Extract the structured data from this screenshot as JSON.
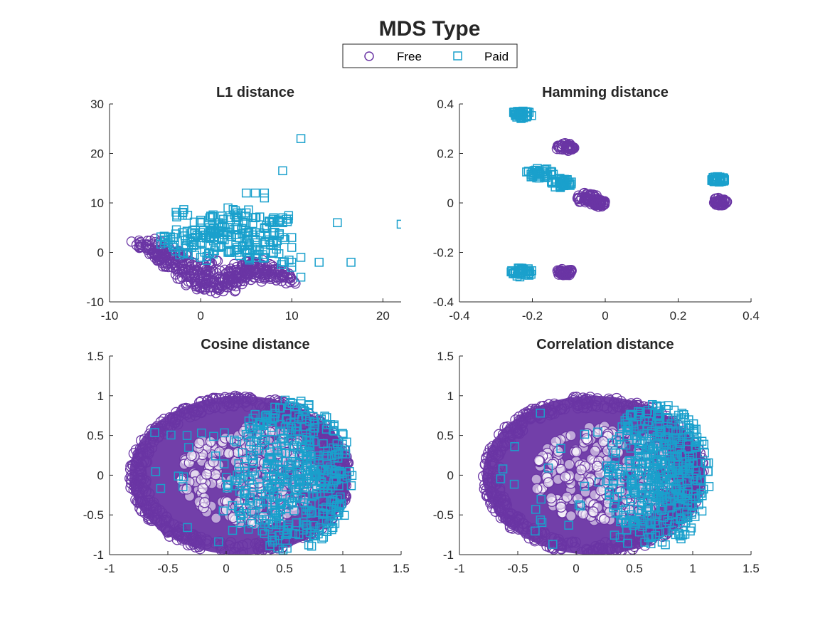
{
  "figure": {
    "title": "MDS Type",
    "legend": [
      {
        "label": "Free",
        "marker": "circle",
        "color": "#6a35a4"
      },
      {
        "label": "Paid",
        "marker": "square",
        "color": "#1aa0cc"
      }
    ],
    "legend_placement": "top-center"
  },
  "chart_data": [
    {
      "type": "scatter",
      "title": "L1 distance",
      "xlim": [
        -10,
        22
      ],
      "ylim": [
        -10,
        30
      ],
      "xticks": [
        -10,
        0,
        10,
        20
      ],
      "yticks": [
        -10,
        0,
        10,
        20,
        30
      ],
      "grid": false,
      "series": [
        {
          "name": "Free",
          "marker": "circle",
          "color": "#6a35a4",
          "points": [
            [
              -7,
              1.5
            ],
            [
              -6,
              1
            ],
            [
              -5,
              0
            ],
            [
              -5,
              -1
            ],
            [
              -4,
              -2
            ],
            [
              -4,
              1
            ],
            [
              -3,
              -3
            ],
            [
              -3,
              0
            ],
            [
              -2,
              -4
            ],
            [
              -2,
              -1
            ],
            [
              -1,
              -5
            ],
            [
              -1,
              -2
            ],
            [
              0,
              -6
            ],
            [
              0,
              -3
            ],
            [
              1,
              -7
            ],
            [
              1,
              -4
            ],
            [
              2,
              -7
            ],
            [
              2,
              -5
            ],
            [
              3,
              -6
            ],
            [
              3,
              -4
            ],
            [
              4,
              -6
            ],
            [
              4,
              -3
            ],
            [
              5,
              -5
            ],
            [
              5,
              -2
            ],
            [
              6,
              -5
            ],
            [
              6,
              -4
            ],
            [
              7,
              -5
            ],
            [
              8,
              -5
            ],
            [
              9,
              -5
            ],
            [
              10,
              -5.5
            ],
            [
              -6,
              1.5
            ],
            [
              -5,
              2
            ],
            [
              -4,
              0.5
            ],
            [
              -3,
              -1.5
            ],
            [
              -2,
              -2.5
            ],
            [
              -1,
              -3.5
            ],
            [
              0,
              -4.5
            ],
            [
              1,
              -5.5
            ],
            [
              2,
              -6
            ],
            [
              3,
              -5
            ],
            [
              4,
              -4
            ],
            [
              5,
              -3.5
            ],
            [
              6,
              -3
            ],
            [
              7,
              -3.5
            ],
            [
              8,
              -4
            ],
            [
              9,
              -4.5
            ],
            [
              -1,
              -6
            ],
            [
              0,
              -7
            ],
            [
              2,
              -7.5
            ],
            [
              3,
              -7
            ],
            [
              -2,
              -5
            ],
            [
              1,
              -2
            ],
            [
              -3,
              -2
            ],
            [
              4,
              -5
            ],
            [
              6,
              -2
            ],
            [
              -4,
              -1
            ],
            [
              -5,
              -0.5
            ],
            [
              5,
              -4
            ],
            [
              7,
              -4.5
            ],
            [
              8,
              -3
            ]
          ]
        },
        {
          "name": "Paid",
          "marker": "square",
          "color": "#1aa0cc",
          "points": [
            [
              -4,
              3
            ],
            [
              -3,
              3
            ],
            [
              -2,
              8
            ],
            [
              -2,
              7.5
            ],
            [
              -2,
              4
            ],
            [
              -1,
              4
            ],
            [
              0,
              6
            ],
            [
              0,
              4
            ],
            [
              1,
              7
            ],
            [
              1,
              5
            ],
            [
              2,
              6
            ],
            [
              2,
              4
            ],
            [
              3,
              7
            ],
            [
              3,
              5
            ],
            [
              4,
              7
            ],
            [
              4,
              5
            ],
            [
              5,
              8
            ],
            [
              5,
              6
            ],
            [
              5,
              12
            ],
            [
              6,
              12
            ],
            [
              7,
              12
            ],
            [
              7,
              11
            ],
            [
              8,
              6
            ],
            [
              8,
              7
            ],
            [
              9,
              7
            ],
            [
              9,
              6
            ],
            [
              9,
              16.5
            ],
            [
              11,
              23
            ],
            [
              10,
              3
            ],
            [
              10,
              1
            ],
            [
              11,
              -1
            ],
            [
              11,
              -5
            ],
            [
              13,
              -2
            ],
            [
              15,
              6
            ],
            [
              16.5,
              -2
            ],
            [
              22,
              5.7
            ],
            [
              -3,
              1
            ],
            [
              -2,
              0
            ],
            [
              -1,
              1
            ],
            [
              0,
              2
            ],
            [
              1,
              0
            ],
            [
              2,
              1
            ],
            [
              3,
              2
            ],
            [
              4,
              1
            ],
            [
              5,
              0
            ],
            [
              6,
              1
            ],
            [
              7,
              2
            ],
            [
              8,
              0
            ],
            [
              9,
              -2
            ],
            [
              10,
              -3
            ],
            [
              -1,
              2
            ],
            [
              0,
              -1
            ],
            [
              1,
              3
            ],
            [
              2,
              3
            ],
            [
              3,
              0
            ],
            [
              4,
              3
            ],
            [
              5,
              4
            ],
            [
              6,
              4
            ],
            [
              6,
              3
            ],
            [
              7,
              5
            ],
            [
              8,
              4
            ],
            [
              3,
              9
            ],
            [
              4,
              8
            ],
            [
              6,
              7
            ],
            [
              -4,
              2
            ],
            [
              2,
              5
            ],
            [
              1,
              4
            ],
            [
              0,
              3
            ],
            [
              8,
              2
            ],
            [
              9,
              3
            ],
            [
              10,
              -2
            ],
            [
              7,
              -1
            ],
            [
              6,
              -1
            ],
            [
              5,
              2
            ],
            [
              4,
              0
            ],
            [
              3,
              4
            ]
          ]
        }
      ]
    },
    {
      "type": "scatter",
      "title": "Hamming distance",
      "xlim": [
        -0.4,
        0.4
      ],
      "ylim": [
        -0.4,
        0.4
      ],
      "xticks": [
        -0.4,
        -0.2,
        0,
        0.2,
        0.4
      ],
      "yticks": [
        -0.4,
        -0.2,
        0,
        0.2,
        0.4
      ],
      "grid": false,
      "series": [
        {
          "name": "Free",
          "marker": "circle",
          "color": "#6a35a4",
          "clusters": [
            {
              "cx": -0.11,
              "cy": 0.225,
              "rx": 0.025,
              "ry": 0.015
            },
            {
              "cx": -0.05,
              "cy": 0.02,
              "rx": 0.03,
              "ry": 0.02
            },
            {
              "cx": -0.02,
              "cy": 0.0,
              "rx": 0.02,
              "ry": 0.015
            },
            {
              "cx": -0.11,
              "cy": -0.28,
              "rx": 0.025,
              "ry": 0.012
            },
            {
              "cx": 0.315,
              "cy": 0.005,
              "rx": 0.02,
              "ry": 0.015
            }
          ]
        },
        {
          "name": "Paid",
          "marker": "square",
          "color": "#1aa0cc",
          "clusters": [
            {
              "cx": -0.23,
              "cy": 0.355,
              "rx": 0.03,
              "ry": 0.018
            },
            {
              "cx": -0.18,
              "cy": 0.12,
              "rx": 0.04,
              "ry": 0.02
            },
            {
              "cx": -0.12,
              "cy": 0.08,
              "rx": 0.03,
              "ry": 0.02
            },
            {
              "cx": -0.23,
              "cy": -0.28,
              "rx": 0.03,
              "ry": 0.02
            },
            {
              "cx": 0.31,
              "cy": 0.095,
              "rx": 0.02,
              "ry": 0.012
            }
          ]
        }
      ]
    },
    {
      "type": "scatter",
      "title": "Cosine distance",
      "xlim": [
        -1,
        1.5
      ],
      "ylim": [
        -1,
        1.5
      ],
      "xticks": [
        -1,
        -0.5,
        0,
        0.5,
        1,
        1.5
      ],
      "yticks": [
        -1,
        -0.5,
        0,
        0.5,
        1,
        1.5
      ],
      "grid": false,
      "series": [
        {
          "name": "Free",
          "marker": "circle",
          "color": "#6a35a4",
          "ellipse": {
            "cx": 0.12,
            "cy": 0.0,
            "rx": 0.95,
            "ry": 1.0
          }
        },
        {
          "name": "Paid",
          "marker": "square",
          "color": "#1aa0cc",
          "region": {
            "cx": 0.55,
            "cy": 0.0,
            "rx": 0.55,
            "ry": 0.95
          }
        }
      ]
    },
    {
      "type": "scatter",
      "title": "Correlation distance",
      "xlim": [
        -1,
        1.5
      ],
      "ylim": [
        -1,
        1.5
      ],
      "xticks": [
        -1,
        -0.5,
        0,
        0.5,
        1,
        1.5
      ],
      "yticks": [
        -1,
        -0.5,
        0,
        0.5,
        1,
        1.5
      ],
      "grid": false,
      "series": [
        {
          "name": "Free",
          "marker": "circle",
          "color": "#6a35a4",
          "ellipse": {
            "cx": 0.15,
            "cy": 0.0,
            "rx": 0.95,
            "ry": 1.0
          }
        },
        {
          "name": "Paid",
          "marker": "square",
          "color": "#1aa0cc",
          "region": {
            "cx": 0.7,
            "cy": 0.0,
            "rx": 0.45,
            "ry": 0.9
          }
        }
      ]
    }
  ]
}
